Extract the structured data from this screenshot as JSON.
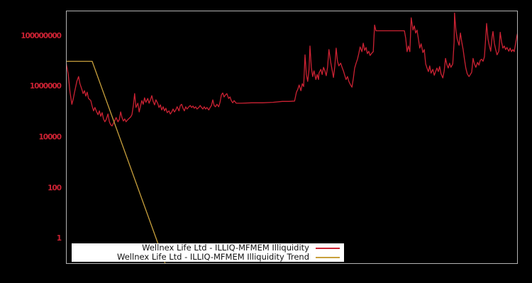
{
  "window": {
    "background": "#000000"
  },
  "chart_data": {
    "type": "line",
    "title": "",
    "xlabel": "",
    "ylabel": "",
    "y_scale": "log",
    "ylim": [
      0.1,
      1000000000.0
    ],
    "grid": false,
    "background": "#000000",
    "border_color": "#b3b3b3",
    "tick_label_color": "#cc2233",
    "legend_position": "bottom-center",
    "yticks": [
      {
        "value": 1,
        "label": "1"
      },
      {
        "value": 100,
        "label": "100"
      },
      {
        "value": 10000,
        "label": "10000"
      },
      {
        "value": 1000000,
        "label": "1000000"
      },
      {
        "value": 100000000,
        "label": "100000000"
      }
    ],
    "series": [
      {
        "name": "Wellnex Life Ltd - ILLIQ-MFMEM Illiquidity",
        "color": "#cc2233",
        "points": [
          [
            0.0,
            9500000.0
          ],
          [
            0.005,
            3000000.0
          ],
          [
            0.009,
            600000.0
          ],
          [
            0.013,
            200000.0
          ],
          [
            0.016,
            320000.0
          ],
          [
            0.019,
            600000.0
          ],
          [
            0.024,
            1600000.0
          ],
          [
            0.028,
            2500000.0
          ],
          [
            0.031,
            1300000.0
          ],
          [
            0.035,
            800000.0
          ],
          [
            0.038,
            530000.0
          ],
          [
            0.041,
            690000.0
          ],
          [
            0.044,
            420000.0
          ],
          [
            0.047,
            600000.0
          ],
          [
            0.05,
            340000.0
          ],
          [
            0.055,
            280000.0
          ],
          [
            0.058,
            170000.0
          ],
          [
            0.061,
            110000.0
          ],
          [
            0.064,
            150000.0
          ],
          [
            0.068,
            100000.0
          ],
          [
            0.071,
            78000.0
          ],
          [
            0.074,
            110000.0
          ],
          [
            0.077,
            67000.0
          ],
          [
            0.08,
            94000.0
          ],
          [
            0.083,
            53000.0
          ],
          [
            0.086,
            41000.0
          ],
          [
            0.089,
            50000.0
          ],
          [
            0.093,
            83000.0
          ],
          [
            0.096,
            41000.0
          ],
          [
            0.099,
            31000.0
          ],
          [
            0.102,
            28000.0
          ],
          [
            0.105,
            36000.0
          ],
          [
            0.108,
            46000.0
          ],
          [
            0.111,
            60000.0
          ],
          [
            0.115,
            41000.0
          ],
          [
            0.118,
            50000.0
          ],
          [
            0.121,
            100000.0
          ],
          [
            0.124,
            60000.0
          ],
          [
            0.127,
            44000.0
          ],
          [
            0.13,
            53000.0
          ],
          [
            0.133,
            41000.0
          ],
          [
            0.137,
            50000.0
          ],
          [
            0.14,
            56000.0
          ],
          [
            0.143,
            63000.0
          ],
          [
            0.146,
            78000.0
          ],
          [
            0.149,
            170000.0
          ],
          [
            0.152,
            530000.0
          ],
          [
            0.155,
            150000.0
          ],
          [
            0.159,
            220000.0
          ],
          [
            0.162,
            100000.0
          ],
          [
            0.165,
            170000.0
          ],
          [
            0.168,
            280000.0
          ],
          [
            0.171,
            200000.0
          ],
          [
            0.174,
            360000.0
          ],
          [
            0.177,
            240000.0
          ],
          [
            0.181,
            340000.0
          ],
          [
            0.184,
            220000.0
          ],
          [
            0.187,
            300000.0
          ],
          [
            0.19,
            440000.0
          ],
          [
            0.193,
            260000.0
          ],
          [
            0.196,
            190000.0
          ],
          [
            0.199,
            300000.0
          ],
          [
            0.203,
            220000.0
          ],
          [
            0.206,
            150000.0
          ],
          [
            0.209,
            190000.0
          ],
          [
            0.212,
            120000.0
          ],
          [
            0.215,
            160000.0
          ],
          [
            0.218,
            110000.0
          ],
          [
            0.221,
            140000.0
          ],
          [
            0.224,
            94000.0
          ],
          [
            0.228,
            110000.0
          ],
          [
            0.231,
            83000.0
          ],
          [
            0.234,
            100000.0
          ],
          [
            0.237,
            130000.0
          ],
          [
            0.24,
            100000.0
          ],
          [
            0.243,
            120000.0
          ],
          [
            0.246,
            160000.0
          ],
          [
            0.25,
            110000.0
          ],
          [
            0.253,
            180000.0
          ],
          [
            0.256,
            200000.0
          ],
          [
            0.259,
            140000.0
          ],
          [
            0.262,
            110000.0
          ],
          [
            0.265,
            160000.0
          ],
          [
            0.268,
            130000.0
          ],
          [
            0.272,
            160000.0
          ],
          [
            0.275,
            180000.0
          ],
          [
            0.278,
            150000.0
          ],
          [
            0.281,
            170000.0
          ],
          [
            0.284,
            140000.0
          ],
          [
            0.287,
            160000.0
          ],
          [
            0.29,
            130000.0
          ],
          [
            0.294,
            150000.0
          ],
          [
            0.297,
            180000.0
          ],
          [
            0.3,
            150000.0
          ],
          [
            0.303,
            130000.0
          ],
          [
            0.306,
            160000.0
          ],
          [
            0.309,
            130000.0
          ],
          [
            0.312,
            150000.0
          ],
          [
            0.316,
            120000.0
          ],
          [
            0.319,
            150000.0
          ],
          [
            0.322,
            180000.0
          ],
          [
            0.325,
            300000.0
          ],
          [
            0.328,
            180000.0
          ],
          [
            0.331,
            160000.0
          ],
          [
            0.334,
            200000.0
          ],
          [
            0.338,
            160000.0
          ],
          [
            0.341,
            240000.0
          ],
          [
            0.344,
            470000.0
          ],
          [
            0.347,
            560000.0
          ],
          [
            0.35,
            390000.0
          ],
          [
            0.353,
            470000.0
          ],
          [
            0.356,
            530000.0
          ],
          [
            0.36,
            340000.0
          ],
          [
            0.363,
            390000.0
          ],
          [
            0.366,
            280000.0
          ],
          [
            0.369,
            230000.0
          ],
          [
            0.372,
            280000.0
          ],
          [
            0.377,
            220000.0
          ],
          [
            0.388,
            220000.0
          ],
          [
            0.411,
            230000.0
          ],
          [
            0.435,
            230000.0
          ],
          [
            0.458,
            240000.0
          ],
          [
            0.479,
            260000.0
          ],
          [
            0.494,
            260000.0
          ],
          [
            0.506,
            270000.0
          ],
          [
            0.51,
            600000.0
          ],
          [
            0.513,
            780000.0
          ],
          [
            0.516,
            1150000.0
          ],
          [
            0.52,
            690000.0
          ],
          [
            0.523,
            1300000.0
          ],
          [
            0.526,
            1000000.0
          ],
          [
            0.529,
            18000000.0
          ],
          [
            0.532,
            3000000.0
          ],
          [
            0.535,
            1600000.0
          ],
          [
            0.538,
            4800000.0
          ],
          [
            0.54,
            40000000.0
          ],
          [
            0.543,
            5800000.0
          ],
          [
            0.546,
            2500000.0
          ],
          [
            0.549,
            4200000.0
          ],
          [
            0.553,
            1900000.0
          ],
          [
            0.556,
            3000000.0
          ],
          [
            0.559,
            1900000.0
          ],
          [
            0.56,
            3400000.0
          ],
          [
            0.564,
            4800000.0
          ],
          [
            0.567,
            3000000.0
          ],
          [
            0.57,
            5800000.0
          ],
          [
            0.573,
            4200000.0
          ],
          [
            0.576,
            2700000.0
          ],
          [
            0.579,
            5800000.0
          ],
          [
            0.582,
            29000000.0
          ],
          [
            0.586,
            9000000.0
          ],
          [
            0.589,
            4500000.0
          ],
          [
            0.592,
            2300000.0
          ],
          [
            0.595,
            6200000.0
          ],
          [
            0.598,
            33000000.0
          ],
          [
            0.601,
            10000000.0
          ],
          [
            0.604,
            6600000.0
          ],
          [
            0.608,
            8400000.0
          ],
          [
            0.611,
            5800000.0
          ],
          [
            0.614,
            4200000.0
          ],
          [
            0.617,
            2800000.0
          ],
          [
            0.62,
            1900000.0
          ],
          [
            0.623,
            2500000.0
          ],
          [
            0.626,
            1600000.0
          ],
          [
            0.63,
            1150000.0
          ],
          [
            0.633,
            950000.0
          ],
          [
            0.636,
            2100000.0
          ],
          [
            0.639,
            5400000.0
          ],
          [
            0.642,
            8400000.0
          ],
          [
            0.645,
            12000000.0
          ],
          [
            0.648,
            20000000.0
          ],
          [
            0.651,
            37000000.0
          ],
          [
            0.655,
            24000000.0
          ],
          [
            0.658,
            52000000.0
          ],
          [
            0.661,
            27000000.0
          ],
          [
            0.664,
            35000000.0
          ],
          [
            0.667,
            20000000.0
          ],
          [
            0.67,
            25000000.0
          ],
          [
            0.673,
            17000000.0
          ],
          [
            0.677,
            21000000.0
          ],
          [
            0.68,
            24000000.0
          ],
          [
            0.683,
            270000000.0
          ],
          [
            0.686,
            160000000.0
          ],
          [
            0.709,
            160000000.0
          ],
          [
            0.733,
            160000000.0
          ],
          [
            0.749,
            160000000.0
          ],
          [
            0.752,
            80000000.0
          ],
          [
            0.755,
            24000000.0
          ],
          [
            0.758,
            40000000.0
          ],
          [
            0.761,
            24000000.0
          ],
          [
            0.764,
            520000000.0
          ],
          [
            0.768,
            170000000.0
          ],
          [
            0.771,
            250000000.0
          ],
          [
            0.774,
            130000000.0
          ],
          [
            0.777,
            170000000.0
          ],
          [
            0.78,
            75000000.0
          ],
          [
            0.783,
            33000000.0
          ],
          [
            0.786,
            49000000.0
          ],
          [
            0.79,
            22000000.0
          ],
          [
            0.793,
            29000000.0
          ],
          [
            0.796,
            7900000.0
          ],
          [
            0.799,
            5400000.0
          ],
          [
            0.802,
            3900000.0
          ],
          [
            0.805,
            6600000.0
          ],
          [
            0.808,
            3400000.0
          ],
          [
            0.812,
            4800000.0
          ],
          [
            0.815,
            2800000.0
          ],
          [
            0.818,
            3900000.0
          ],
          [
            0.821,
            5400000.0
          ],
          [
            0.824,
            3900000.0
          ],
          [
            0.827,
            6200000.0
          ],
          [
            0.83,
            3200000.0
          ],
          [
            0.834,
            2200000.0
          ],
          [
            0.837,
            4200000.0
          ],
          [
            0.84,
            13000000.0
          ],
          [
            0.843,
            7400000.0
          ],
          [
            0.846,
            5400000.0
          ],
          [
            0.849,
            8400000.0
          ],
          [
            0.852,
            5800000.0
          ],
          [
            0.856,
            7900000.0
          ],
          [
            0.859,
            57000000.0
          ],
          [
            0.86,
            810000000.0
          ],
          [
            0.863,
            170000000.0
          ],
          [
            0.866,
            75000000.0
          ],
          [
            0.87,
            43000000.0
          ],
          [
            0.873,
            130000000.0
          ],
          [
            0.876,
            57000000.0
          ],
          [
            0.879,
            29000000.0
          ],
          [
            0.882,
            12000000.0
          ],
          [
            0.885,
            5400000.0
          ],
          [
            0.888,
            3200000.0
          ],
          [
            0.892,
            2500000.0
          ],
          [
            0.895,
            3000000.0
          ],
          [
            0.898,
            3700000.0
          ],
          [
            0.901,
            13000000.0
          ],
          [
            0.904,
            7900000.0
          ],
          [
            0.907,
            5800000.0
          ],
          [
            0.911,
            9000000.0
          ],
          [
            0.914,
            7000000.0
          ],
          [
            0.917,
            11000000.0
          ],
          [
            0.92,
            12000000.0
          ],
          [
            0.923,
            10000000.0
          ],
          [
            0.926,
            15000000.0
          ],
          [
            0.929,
            86000000.0
          ],
          [
            0.931,
            310000000.0
          ],
          [
            0.934,
            75000000.0
          ],
          [
            0.937,
            40000000.0
          ],
          [
            0.94,
            25000000.0
          ],
          [
            0.943,
            90000000.0
          ],
          [
            0.945,
            150000000.0
          ],
          [
            0.948,
            52000000.0
          ],
          [
            0.951,
            29000000.0
          ],
          [
            0.954,
            18000000.0
          ],
          [
            0.958,
            25000000.0
          ],
          [
            0.961,
            140000000.0
          ],
          [
            0.964,
            57000000.0
          ],
          [
            0.967,
            33000000.0
          ],
          [
            0.97,
            40000000.0
          ],
          [
            0.973,
            29000000.0
          ],
          [
            0.976,
            35000000.0
          ],
          [
            0.98,
            25000000.0
          ],
          [
            0.983,
            33000000.0
          ],
          [
            0.986,
            24000000.0
          ],
          [
            0.989,
            29000000.0
          ],
          [
            0.992,
            24000000.0
          ],
          [
            0.995,
            49000000.0
          ],
          [
            0.998,
            100000000.0
          ],
          [
            1.0,
            140000000.0
          ]
        ]
      },
      {
        "name": "Wellnex Life Ltd - ILLIQ-MFMEM Illiquidity Trend",
        "color": "#c8a03c",
        "points": [
          [
            0.0,
            10000000.0
          ],
          [
            0.058,
            10000000.0
          ],
          [
            0.22,
            0.1
          ]
        ]
      }
    ]
  },
  "legend": {
    "items": [
      {
        "label": "Wellnex Life Ltd - ILLIQ-MFMEM Illiquidity",
        "color": "#cc2233"
      },
      {
        "label": "Wellnex Life Ltd - ILLIQ-MFMEM Illiquidity Trend",
        "color": "#c8a03c"
      }
    ]
  }
}
